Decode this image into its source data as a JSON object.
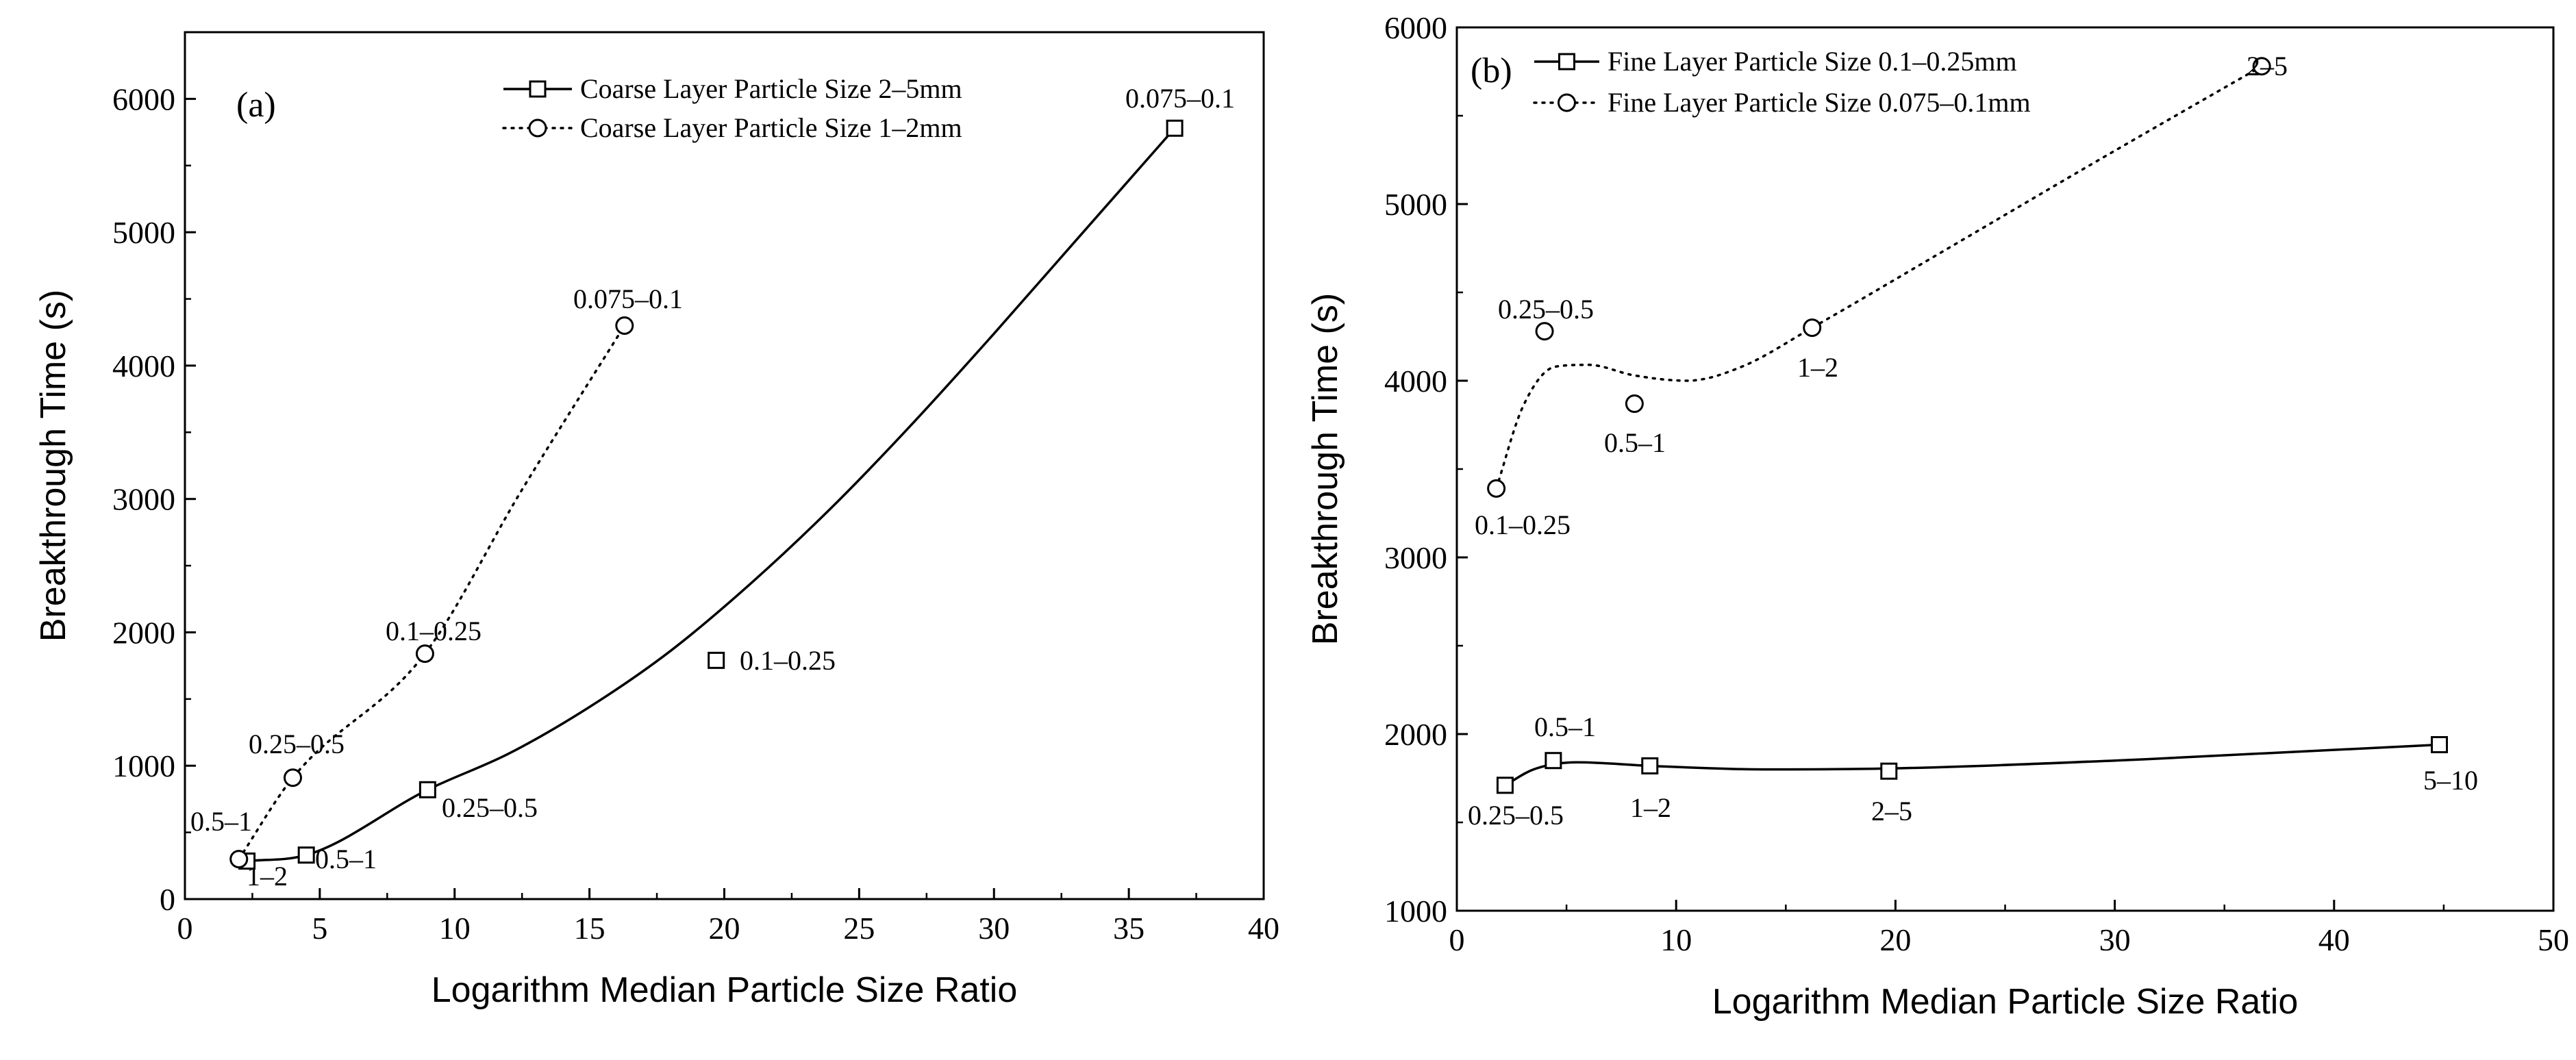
{
  "figure_caption": "",
  "chart_data": [
    {
      "type": "line",
      "panel_label": "(a)",
      "xlabel": "Logarithm Median Particle Size Ratio",
      "ylabel": "Breakthrough Time (s)",
      "xlim": [
        0,
        40
      ],
      "ylim": [
        0,
        6500
      ],
      "xticks": [
        0,
        5,
        10,
        15,
        20,
        25,
        30,
        35,
        40
      ],
      "yticks": [
        0,
        1000,
        2000,
        3000,
        4000,
        5000,
        6000
      ],
      "legend_position": "top-right",
      "series": [
        {
          "name": "Coarse Layer Particle Size 2–5mm",
          "marker": "square",
          "line_style": "solid",
          "points": [
            {
              "x": 2.3,
              "y": 285,
              "label": "1–2"
            },
            {
              "x": 4.5,
              "y": 330,
              "label": "0.5–1"
            },
            {
              "x": 9.0,
              "y": 820,
              "label": "0.25–0.5"
            },
            {
              "x": 19.7,
              "y": 1790,
              "label": "0.1–0.25"
            },
            {
              "x": 36.7,
              "y": 5780,
              "label": "0.075–0.1"
            }
          ],
          "fit_curve": [
            [
              2.3,
              285
            ],
            [
              4.5,
              330
            ],
            [
              9.0,
              820
            ],
            [
              12,
              1090
            ],
            [
              15,
              1440
            ],
            [
              18,
              1860
            ],
            [
              21,
              2370
            ],
            [
              24,
              2940
            ],
            [
              27,
              3570
            ],
            [
              30,
              4240
            ],
            [
              33,
              4930
            ],
            [
              36.7,
              5780
            ]
          ]
        },
        {
          "name": "Coarse Layer Particle Size 1–2mm",
          "marker": "circle",
          "line_style": "dotted",
          "points": [
            {
              "x": 2.0,
              "y": 300,
              "label": "0.5–1"
            },
            {
              "x": 4.0,
              "y": 910,
              "label": "0.25–0.5"
            },
            {
              "x": 8.9,
              "y": 1840,
              "label": "0.1–0.25"
            },
            {
              "x": 16.3,
              "y": 4300,
              "label": "0.075–0.1"
            }
          ],
          "fit_curve": [
            [
              2.0,
              300
            ],
            [
              4.0,
              910
            ],
            [
              8.9,
              1840
            ],
            [
              12.5,
              3070
            ],
            [
              16.3,
              4300
            ]
          ]
        }
      ]
    },
    {
      "type": "line",
      "panel_label": "(b)",
      "xlabel": "Logarithm Median Particle Size Ratio",
      "ylabel": "Breakthrough Time (s)",
      "xlim": [
        0,
        50
      ],
      "ylim": [
        1000,
        6000
      ],
      "xticks": [
        0,
        10,
        20,
        30,
        40,
        50
      ],
      "yticks": [
        1000,
        2000,
        3000,
        4000,
        5000,
        6000
      ],
      "legend_position": "top-left",
      "series": [
        {
          "name": "Fine Layer Particle Size 0.1–0.25mm",
          "marker": "square",
          "line_style": "solid",
          "points": [
            {
              "x": 2.2,
              "y": 1710,
              "label": "0.25–0.5"
            },
            {
              "x": 4.4,
              "y": 1850,
              "label": "0.5–1"
            },
            {
              "x": 8.8,
              "y": 1820,
              "label": "1–2"
            },
            {
              "x": 19.7,
              "y": 1790,
              "label": "2–5"
            },
            {
              "x": 44.8,
              "y": 1940,
              "label": "5–10"
            }
          ],
          "fit_curve": [
            [
              2.2,
              1710
            ],
            [
              3.5,
              1800
            ],
            [
              5.5,
              1840
            ],
            [
              8.8,
              1820
            ],
            [
              14,
              1800
            ],
            [
              19.7,
              1805
            ],
            [
              30,
              1850
            ],
            [
              44.8,
              1940
            ]
          ]
        },
        {
          "name": "Fine Layer Particle Size 0.075–0.1mm",
          "marker": "circle",
          "line_style": "dotted",
          "points": [
            {
              "x": 1.8,
              "y": 3390,
              "label": "0.1–0.25"
            },
            {
              "x": 4.0,
              "y": 4280,
              "label": "0.25–0.5"
            },
            {
              "x": 8.1,
              "y": 3870,
              "label": "0.5–1"
            },
            {
              "x": 16.2,
              "y": 4300,
              "label": "1–2"
            },
            {
              "x": 36.7,
              "y": 5780,
              "label": "2–5"
            }
          ],
          "fit_curve": [
            [
              1.8,
              3390
            ],
            [
              3.0,
              3850
            ],
            [
              4.5,
              4080
            ],
            [
              6.0,
              4090
            ],
            [
              8.1,
              4030
            ],
            [
              10.5,
              4000
            ],
            [
              13,
              4080
            ],
            [
              16.2,
              4300
            ],
            [
              22,
              4720
            ],
            [
              29,
              5230
            ],
            [
              36.7,
              5780
            ]
          ]
        }
      ]
    }
  ]
}
